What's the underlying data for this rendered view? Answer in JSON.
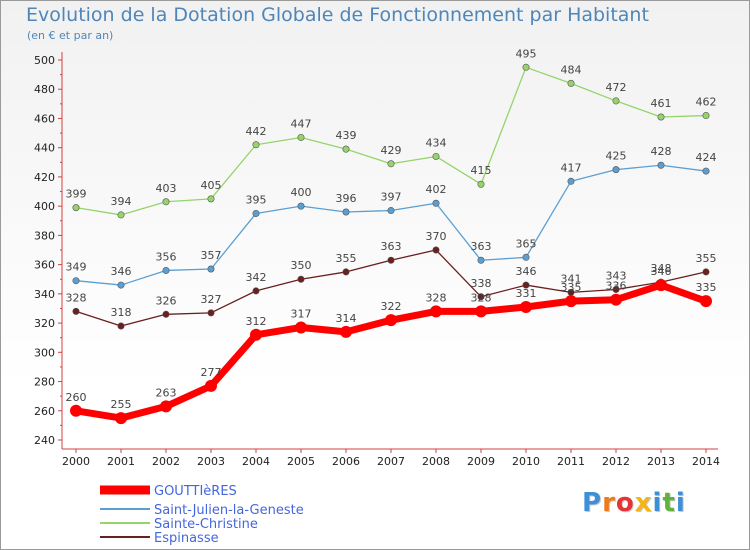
{
  "title": "Evolution de la Dotation Globale de Fonctionnement par Habitant",
  "subtitle": "(en € et par an)",
  "logo": {
    "letters": [
      "P",
      "r",
      "o",
      "x",
      "i",
      "t",
      "i"
    ],
    "colors": [
      "#3d8fd6",
      "#f07a1a",
      "#e63333",
      "#f3b51a",
      "#3d8fd6",
      "#60b33a",
      "#3d8fd6"
    ]
  },
  "chart_data": {
    "type": "line",
    "x": [
      "2000",
      "2001",
      "2002",
      "2003",
      "2004",
      "2005",
      "2006",
      "2007",
      "2008",
      "2009",
      "2010",
      "2011",
      "2012",
      "2013",
      "2014"
    ],
    "ylim": [
      240,
      500
    ],
    "yticks": [
      240,
      260,
      280,
      300,
      320,
      340,
      360,
      380,
      400,
      420,
      440,
      460,
      480,
      500
    ],
    "grid": false,
    "legend_position": "bottom",
    "series": [
      {
        "name": "Espinasse",
        "color": "#6b1f1f",
        "values": [
          328,
          318,
          326,
          327,
          342,
          350,
          355,
          363,
          370,
          338,
          346,
          341,
          343,
          348,
          355
        ]
      },
      {
        "name": "Saint-Julien-la-Geneste",
        "color": "#5b9fd2",
        "values": [
          349,
          346,
          356,
          357,
          395,
          400,
          396,
          397,
          402,
          363,
          365,
          417,
          425,
          428,
          424
        ]
      },
      {
        "name": "Sainte-Christine",
        "color": "#95d46a",
        "values": [
          399,
          394,
          403,
          405,
          442,
          447,
          439,
          429,
          434,
          415,
          495,
          484,
          472,
          461,
          462
        ]
      },
      {
        "name": "GOUTTIèRES",
        "color": "#ff0000",
        "values": [
          260,
          255,
          263,
          277,
          312,
          317,
          314,
          322,
          328,
          328,
          331,
          335,
          336,
          346,
          335
        ]
      }
    ],
    "legend_order": [
      "GOUTTIèRES",
      "Saint-Julien-la-Geneste",
      "Sainte-Christine",
      "Espinasse"
    ]
  }
}
